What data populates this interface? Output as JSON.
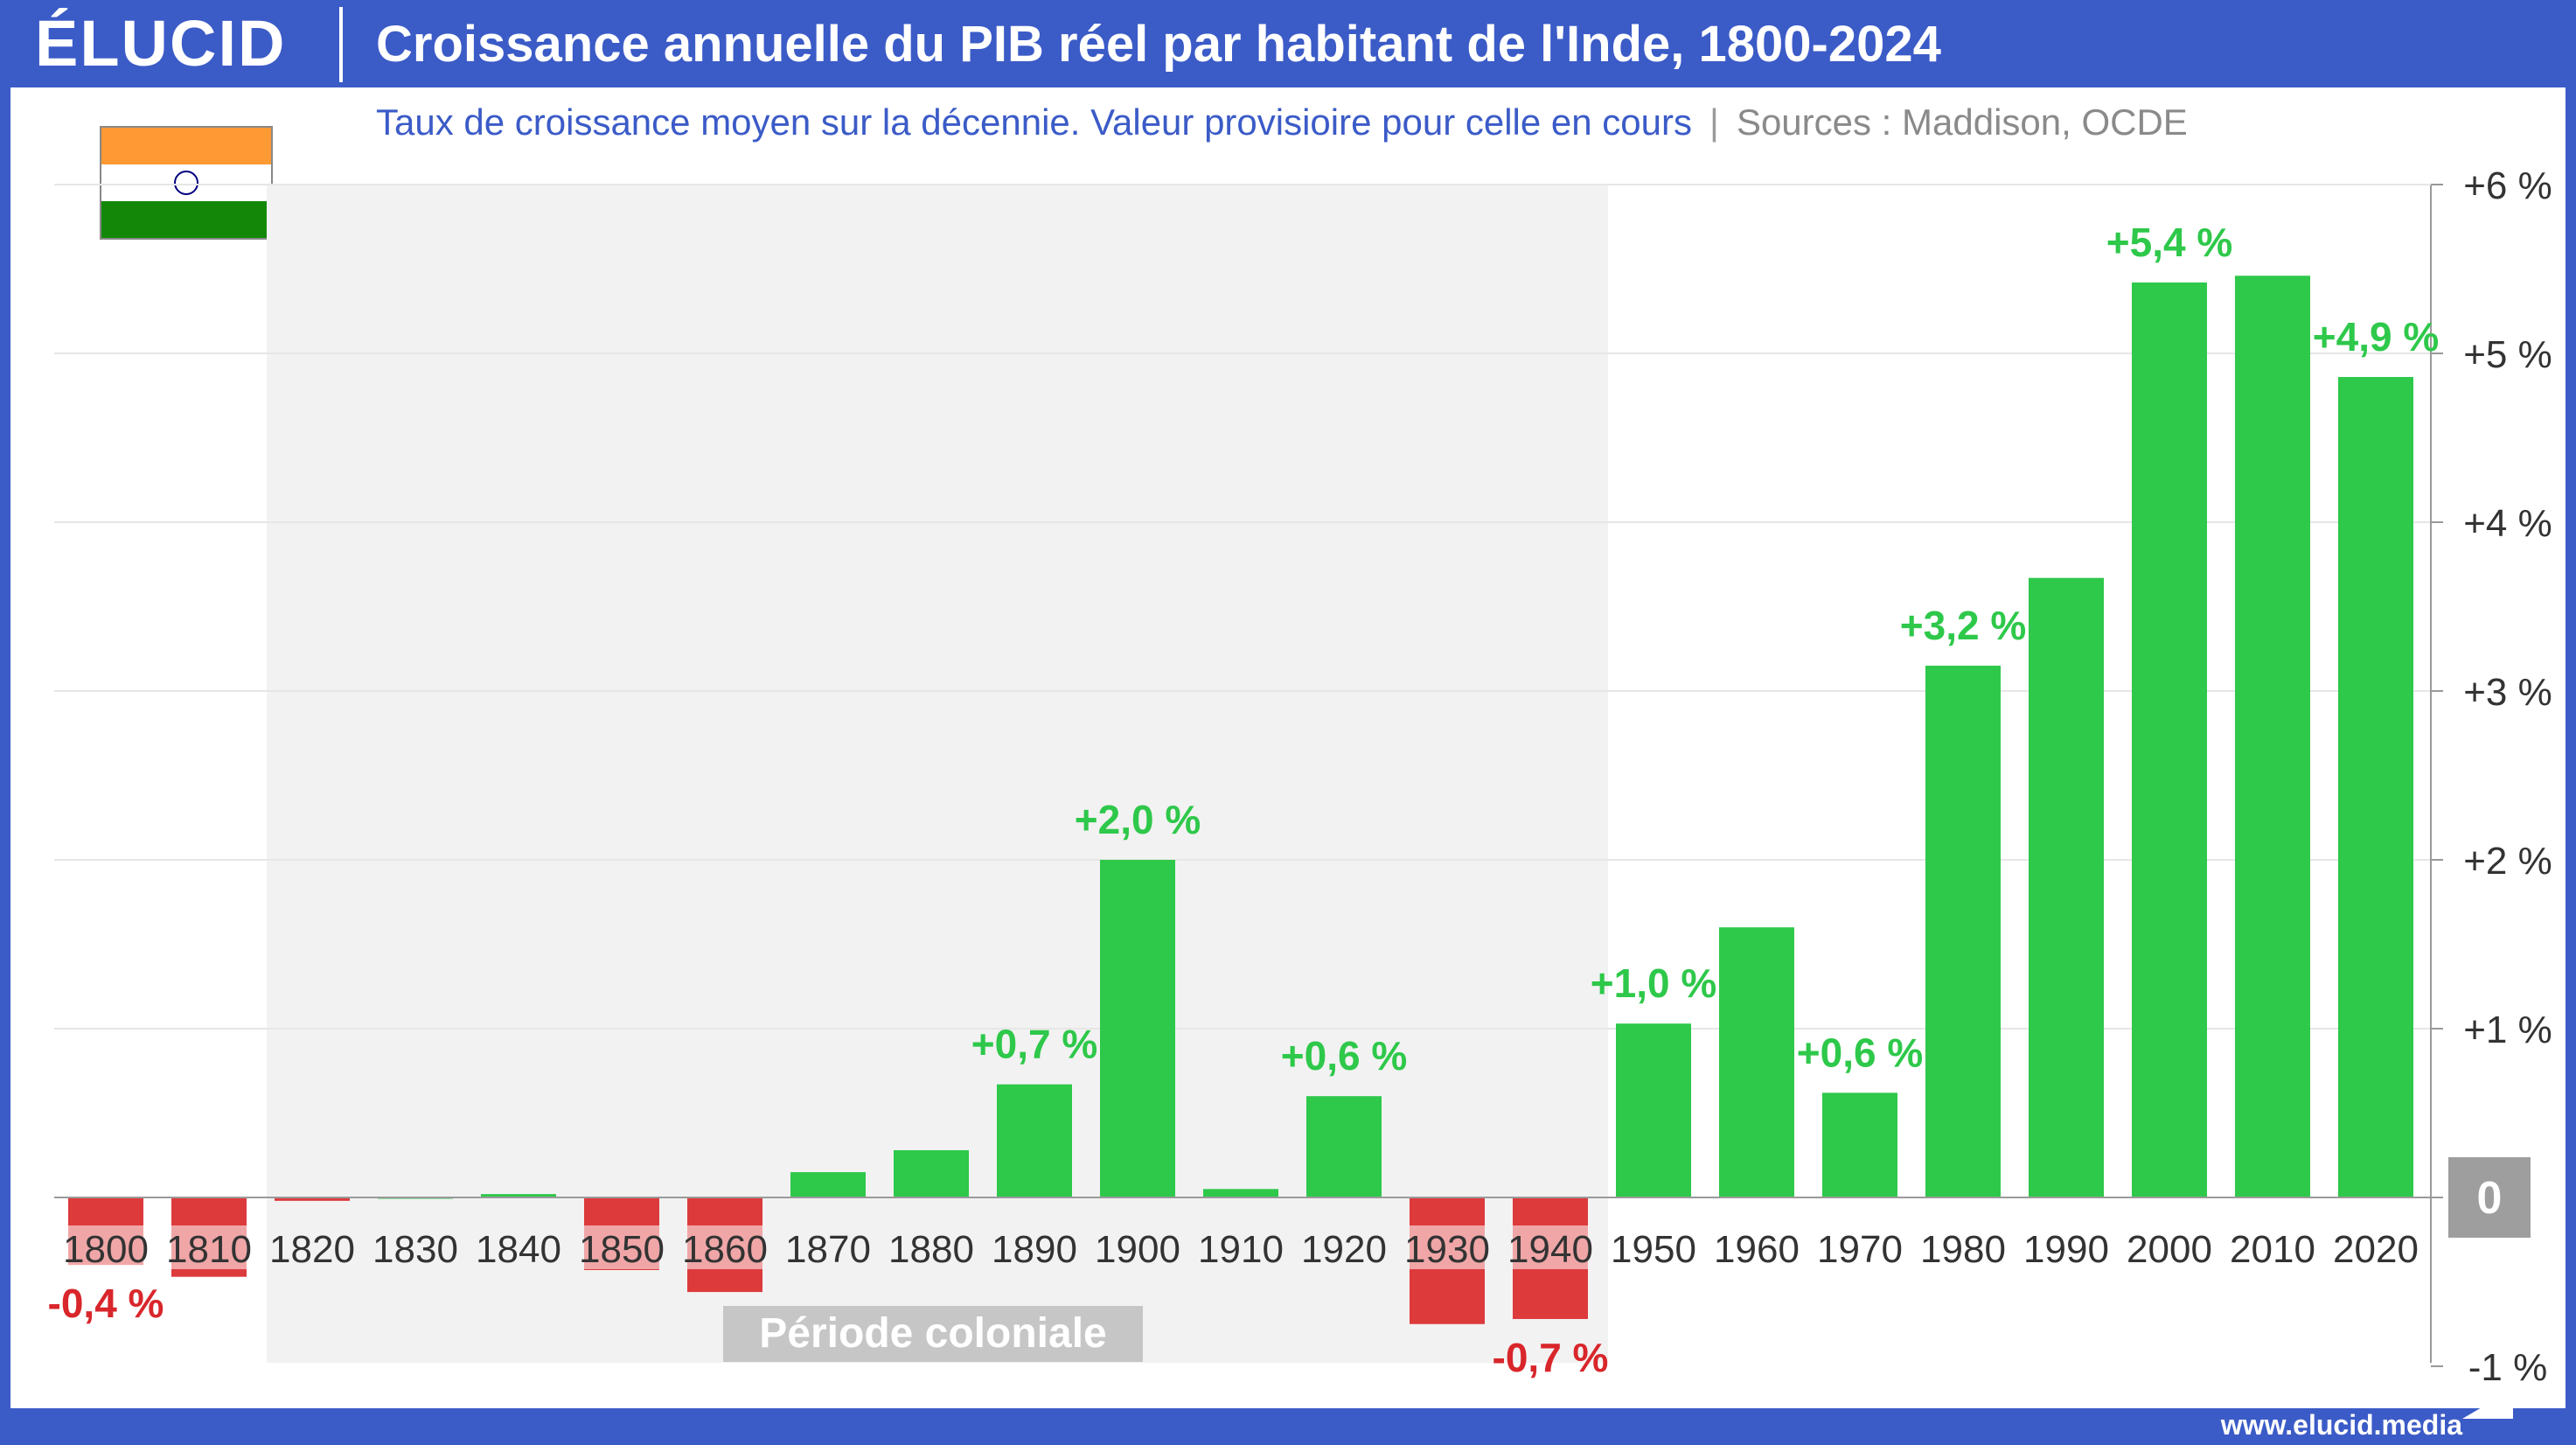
{
  "header": {
    "logo": "ÉLUCID",
    "title": "Croissance annuelle du PIB réel par habitant de l'Inde, 1800-2024"
  },
  "subtitle": {
    "main": "Taux de croissance moyen sur la décennie. Valeur provisioire pour celle en cours",
    "separator": "|",
    "sources": "Sources : Maddison, OCDE"
  },
  "footer": {
    "url": "www.elucid.media"
  },
  "colors": {
    "positive": "#2ec84a",
    "negative": "#dd3a3c",
    "positive_label": "#2ec84a",
    "negative_label": "#d8262b",
    "shade": "#f2f2f2",
    "zero_badge": "#9e9e9e",
    "brand": "#3b5bc7"
  },
  "chart_data": {
    "type": "bar",
    "categories": [
      "1800",
      "1810",
      "1820",
      "1830",
      "1840",
      "1850",
      "1860",
      "1870",
      "1880",
      "1890",
      "1900",
      "1910",
      "1920",
      "1930",
      "1940",
      "1950",
      "1960",
      "1970",
      "1980",
      "1990",
      "2000",
      "2010",
      "2020"
    ],
    "values": [
      -0.4,
      -0.47,
      -0.02,
      0.0,
      0.02,
      -0.43,
      -0.56,
      0.15,
      0.28,
      0.67,
      2.0,
      0.05,
      0.6,
      -0.75,
      -0.72,
      1.03,
      1.6,
      0.62,
      3.15,
      3.67,
      5.42,
      5.46,
      4.86
    ],
    "data_labels": [
      {
        "category": "1800",
        "text": "-0,4 %"
      },
      {
        "category": "1890",
        "text": "+0,7 %"
      },
      {
        "category": "1900",
        "text": "+2,0 %"
      },
      {
        "category": "1920",
        "text": "+0,6 %"
      },
      {
        "category": "1940",
        "text": "-0,7 %"
      },
      {
        "category": "1950",
        "text": "+1,0 %"
      },
      {
        "category": "1970",
        "text": "+0,6 %"
      },
      {
        "category": "1980",
        "text": "+3,2 %"
      },
      {
        "category": "2000",
        "text": "+5,4 %"
      },
      {
        "category": "2020",
        "text": "+4,9 %"
      }
    ],
    "y_ticks": [
      {
        "value": 6,
        "label": "+6 %"
      },
      {
        "value": 5,
        "label": "+5 %"
      },
      {
        "value": 4,
        "label": "+4 %"
      },
      {
        "value": 3,
        "label": "+3 %"
      },
      {
        "value": 2,
        "label": "+2 %"
      },
      {
        "value": 1,
        "label": "+1 %"
      },
      {
        "value": 0,
        "label": "0"
      },
      {
        "value": -1,
        "label": "-1 %"
      }
    ],
    "ylim": [
      -1,
      6
    ],
    "y_axis_position": "right",
    "grid": true,
    "shaded_period": {
      "from": "1820",
      "to": "1940",
      "label": "Période coloniale"
    }
  }
}
